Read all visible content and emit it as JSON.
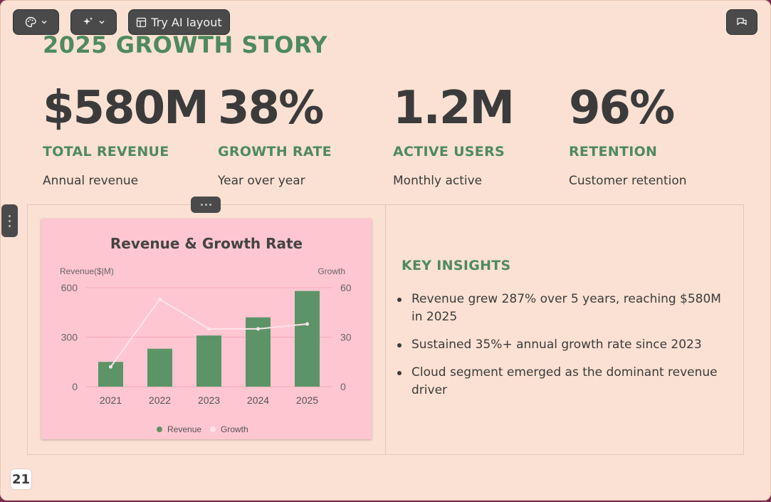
{
  "toolbar": {
    "theme_icon": "palette-icon",
    "magic_icon": "sparkles-icon",
    "ai_layout_label": "Try AI layout",
    "ai_layout_icon": "layout-icon",
    "comments_icon": "comments-icon"
  },
  "slide": {
    "title": "2025 GROWTH STORY",
    "stats": [
      {
        "value": "$580M",
        "label": "TOTAL REVENUE",
        "desc": "Annual revenue"
      },
      {
        "value": "38%",
        "label": "GROWTH RATE",
        "desc": "Year over year"
      },
      {
        "value": "1.2M",
        "label": "ACTIVE USERS",
        "desc": "Monthly active"
      },
      {
        "value": "96%",
        "label": "RETENTION",
        "desc": "Customer retention"
      }
    ],
    "insights_title": "KEY INSIGHTS",
    "insights": [
      "Revenue grew 287% over 5 years, reaching $580M in 2025",
      "Sustained 35%+ annual growth rate since 2023",
      "Cloud segment emerged as the dominant revenue driver"
    ],
    "page_number": "21"
  },
  "colors": {
    "background": "#fbe1d3",
    "accent_green": "#4e8a5e",
    "bar_green": "#5c9467",
    "chart_bg": "#fdc6d1",
    "line": "#fde4ea",
    "text_dark": "#3b3b3b"
  },
  "chart_data": {
    "type": "bar",
    "title": "Revenue & Growth Rate",
    "categories": [
      "2021",
      "2022",
      "2023",
      "2024",
      "2025"
    ],
    "series": [
      {
        "name": "Revenue",
        "type": "bar",
        "axis": "left",
        "values": [
          150,
          230,
          310,
          420,
          580
        ]
      },
      {
        "name": "Growth",
        "type": "line",
        "axis": "right",
        "values": [
          12,
          53,
          35,
          35,
          38
        ]
      }
    ],
    "ylabel": "Revenue($|M)",
    "y2label": "Growth",
    "ylim": [
      0,
      600
    ],
    "y2lim": [
      0,
      60
    ],
    "yticks": [
      "0",
      "300",
      "600"
    ],
    "y2ticks": [
      "0",
      "30",
      "60"
    ],
    "grid": true,
    "legend": "bottom-center"
  }
}
